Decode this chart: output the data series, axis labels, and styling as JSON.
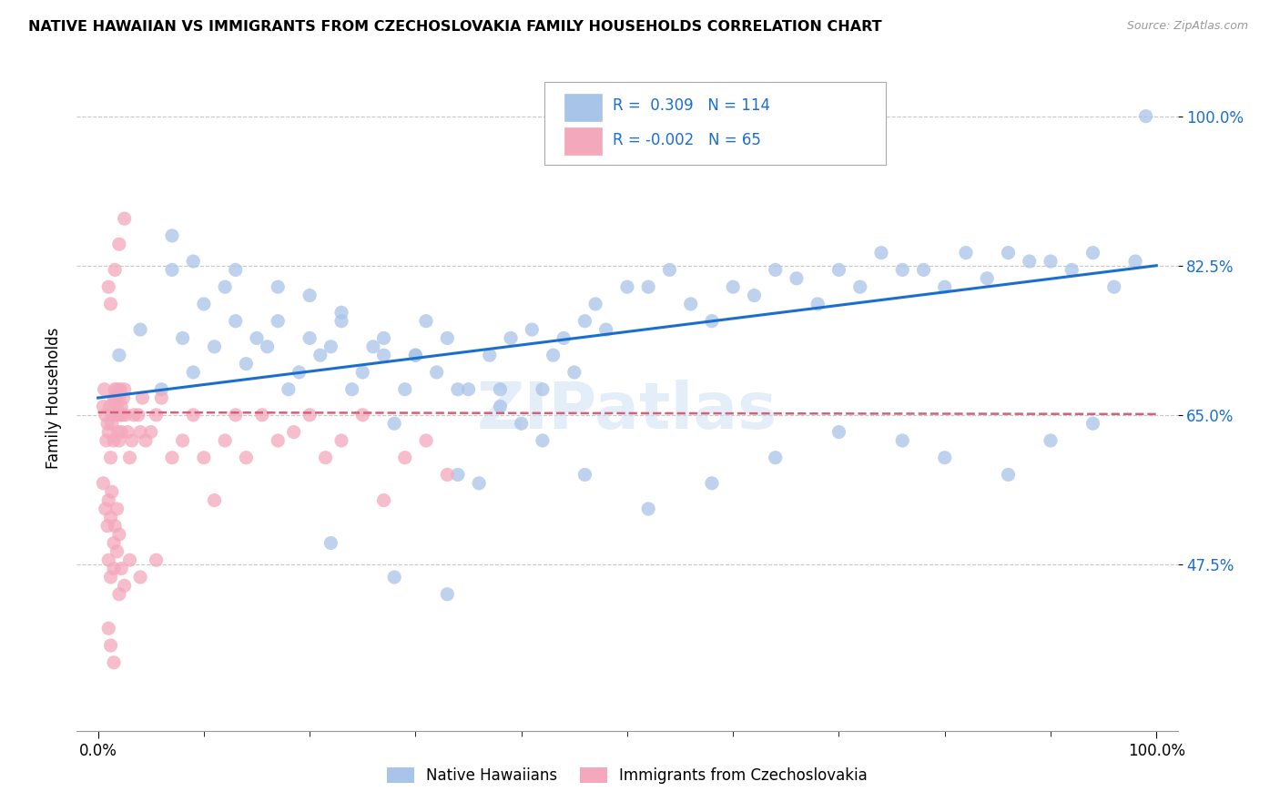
{
  "title": "NATIVE HAWAIIAN VS IMMIGRANTS FROM CZECHOSLOVAKIA FAMILY HOUSEHOLDS CORRELATION CHART",
  "source": "Source: ZipAtlas.com",
  "ylabel": "Family Households",
  "xlim": [
    -0.02,
    1.02
  ],
  "ylim": [
    0.28,
    1.06
  ],
  "ytick_labels": [
    "47.5%",
    "65.0%",
    "82.5%",
    "100.0%"
  ],
  "ytick_values": [
    0.475,
    0.65,
    0.825,
    1.0
  ],
  "xtick_labels": [
    "0.0%",
    "100.0%"
  ],
  "xtick_values": [
    0.0,
    1.0
  ],
  "blue_R": "0.309",
  "blue_N": "114",
  "pink_R": "-0.002",
  "pink_N": "65",
  "blue_color": "#a8c4e8",
  "pink_color": "#f4a8bc",
  "blue_line_color": "#1a6fce",
  "pink_line_color": "#d4607a",
  "watermark": "ZIPatlas",
  "blue_scatter_x": [
    0.02,
    0.04,
    0.06,
    0.07,
    0.08,
    0.09,
    0.1,
    0.11,
    0.12,
    0.13,
    0.14,
    0.15,
    0.16,
    0.17,
    0.18,
    0.19,
    0.2,
    0.21,
    0.22,
    0.23,
    0.24,
    0.25,
    0.26,
    0.27,
    0.28,
    0.29,
    0.3,
    0.31,
    0.32,
    0.33,
    0.34,
    0.35,
    0.36,
    0.37,
    0.38,
    0.39,
    0.4,
    0.41,
    0.42,
    0.43,
    0.44,
    0.45,
    0.46,
    0.47,
    0.48,
    0.5,
    0.52,
    0.54,
    0.56,
    0.58,
    0.6,
    0.62,
    0.64,
    0.66,
    0.68,
    0.7,
    0.72,
    0.74,
    0.76,
    0.78,
    0.8,
    0.82,
    0.84,
    0.86,
    0.88,
    0.9,
    0.92,
    0.94,
    0.96,
    0.98,
    0.99,
    0.07,
    0.09,
    0.13,
    0.17,
    0.2,
    0.23,
    0.27,
    0.3,
    0.34,
    0.38,
    0.42,
    0.46,
    0.52,
    0.58,
    0.64,
    0.7,
    0.76,
    0.8,
    0.86,
    0.9,
    0.94,
    0.22,
    0.28,
    0.33
  ],
  "blue_scatter_y": [
    0.72,
    0.75,
    0.68,
    0.82,
    0.74,
    0.7,
    0.78,
    0.73,
    0.8,
    0.76,
    0.71,
    0.74,
    0.73,
    0.76,
    0.68,
    0.7,
    0.74,
    0.72,
    0.73,
    0.77,
    0.68,
    0.7,
    0.73,
    0.72,
    0.64,
    0.68,
    0.72,
    0.76,
    0.7,
    0.74,
    0.58,
    0.68,
    0.57,
    0.72,
    0.68,
    0.74,
    0.64,
    0.75,
    0.68,
    0.72,
    0.74,
    0.7,
    0.76,
    0.78,
    0.75,
    0.8,
    0.8,
    0.82,
    0.78,
    0.76,
    0.8,
    0.79,
    0.82,
    0.81,
    0.78,
    0.82,
    0.8,
    0.84,
    0.82,
    0.82,
    0.8,
    0.84,
    0.81,
    0.84,
    0.83,
    0.83,
    0.82,
    0.84,
    0.8,
    0.83,
    1.0,
    0.86,
    0.83,
    0.82,
    0.8,
    0.79,
    0.76,
    0.74,
    0.72,
    0.68,
    0.66,
    0.62,
    0.58,
    0.54,
    0.57,
    0.6,
    0.63,
    0.62,
    0.6,
    0.58,
    0.62,
    0.64,
    0.5,
    0.46,
    0.44
  ],
  "pink_scatter_x": [
    0.005,
    0.006,
    0.007,
    0.008,
    0.009,
    0.01,
    0.011,
    0.012,
    0.013,
    0.014,
    0.015,
    0.015,
    0.016,
    0.016,
    0.017,
    0.017,
    0.018,
    0.018,
    0.019,
    0.019,
    0.02,
    0.02,
    0.021,
    0.021,
    0.022,
    0.022,
    0.023,
    0.024,
    0.025,
    0.026,
    0.028,
    0.03,
    0.032,
    0.034,
    0.038,
    0.04,
    0.042,
    0.045,
    0.05,
    0.055,
    0.06,
    0.07,
    0.08,
    0.09,
    0.1,
    0.11,
    0.12,
    0.13,
    0.14,
    0.155,
    0.17,
    0.185,
    0.2,
    0.215,
    0.23,
    0.25,
    0.27,
    0.29,
    0.31,
    0.33,
    0.01,
    0.012,
    0.016,
    0.02,
    0.025
  ],
  "pink_scatter_y": [
    0.66,
    0.68,
    0.65,
    0.62,
    0.64,
    0.63,
    0.66,
    0.6,
    0.64,
    0.65,
    0.67,
    0.62,
    0.68,
    0.66,
    0.65,
    0.67,
    0.66,
    0.68,
    0.63,
    0.65,
    0.62,
    0.67,
    0.65,
    0.68,
    0.63,
    0.66,
    0.65,
    0.67,
    0.68,
    0.65,
    0.63,
    0.6,
    0.62,
    0.65,
    0.65,
    0.63,
    0.67,
    0.62,
    0.63,
    0.65,
    0.67,
    0.6,
    0.62,
    0.65,
    0.6,
    0.55,
    0.62,
    0.65,
    0.6,
    0.65,
    0.62,
    0.63,
    0.65,
    0.6,
    0.62,
    0.65,
    0.55,
    0.6,
    0.62,
    0.58,
    0.8,
    0.78,
    0.82,
    0.85,
    0.88
  ],
  "pink_scatter_x2": [
    0.005,
    0.007,
    0.009,
    0.01,
    0.012,
    0.013,
    0.015,
    0.016,
    0.018,
    0.02,
    0.01,
    0.012,
    0.015,
    0.018,
    0.02,
    0.022,
    0.025,
    0.03,
    0.04,
    0.055,
    0.01,
    0.012,
    0.015
  ],
  "pink_scatter_y2": [
    0.57,
    0.54,
    0.52,
    0.55,
    0.53,
    0.56,
    0.5,
    0.52,
    0.54,
    0.51,
    0.48,
    0.46,
    0.47,
    0.49,
    0.44,
    0.47,
    0.45,
    0.48,
    0.46,
    0.48,
    0.4,
    0.38,
    0.36
  ],
  "blue_line_y_start": 0.67,
  "blue_line_y_end": 0.825,
  "pink_line_y_start": 0.653,
  "pink_line_y_end": 0.651
}
